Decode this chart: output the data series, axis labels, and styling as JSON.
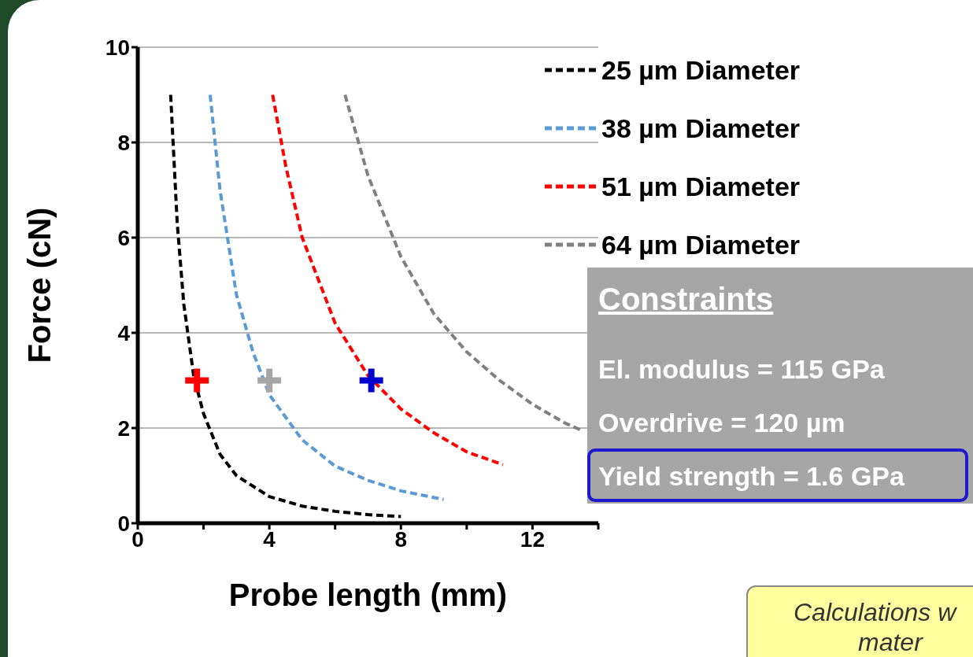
{
  "chart_data": {
    "type": "line",
    "xlabel": "Probe length (mm)",
    "ylabel": "Force (cN)",
    "xlim": [
      0,
      14
    ],
    "xticks": [
      0,
      {
        "value": 2,
        "label": null
      },
      4,
      {
        "value": 6,
        "label": null
      },
      8,
      {
        "value": 10,
        "label": null
      },
      12,
      {
        "value": 14,
        "label": null
      }
    ],
    "ylim": [
      0,
      10
    ],
    "yticks": [
      0,
      2,
      4,
      6,
      8,
      10
    ],
    "grid": "y",
    "legend": "top right",
    "line_style": "dashed",
    "marker": "none",
    "series": [
      {
        "name": "25 µm Diameter",
        "color": "#000000",
        "x": [
          1,
          1.2,
          1.4,
          1.7,
          2,
          2.5,
          3,
          4,
          5,
          6,
          7,
          8
        ],
        "values": [
          9,
          6.3,
          4.6,
          3.1,
          2.3,
          1.45,
          1,
          0.56,
          0.36,
          0.25,
          0.18,
          0.14
        ]
      },
      {
        "name": "38 µm Diameter",
        "color": "#5b9bd5",
        "x": [
          2.2,
          2.5,
          3,
          3.5,
          4,
          5,
          6,
          7,
          8,
          9.3
        ],
        "values": [
          9,
          7,
          4.8,
          3.6,
          2.7,
          1.75,
          1.2,
          0.9,
          0.68,
          0.5
        ]
      },
      {
        "name": "51 µm Diameter",
        "color": "#ff0000",
        "x": [
          4.1,
          4.5,
          5,
          6,
          7,
          8,
          9,
          10,
          11.1
        ],
        "values": [
          9,
          7.5,
          6,
          4.2,
          3.1,
          2.4,
          1.9,
          1.5,
          1.23
        ]
      },
      {
        "name": "64 µm Diameter",
        "color": "#808080",
        "x": [
          6.3,
          7,
          8,
          9,
          10,
          11,
          12,
          13,
          13.5
        ],
        "values": [
          9,
          7.3,
          5.6,
          4.4,
          3.6,
          3,
          2.5,
          2.1,
          1.95
        ]
      },
      {
        "type": "scatter",
        "marker": "cross",
        "color": "#ff0000",
        "x": [
          1.8
        ],
        "values": [
          3
        ]
      },
      {
        "type": "scatter",
        "marker": "cross",
        "color": "#a6a6a6",
        "x": [
          4
        ],
        "values": [
          3
        ]
      },
      {
        "type": "scatter",
        "marker": "cross",
        "color": "#0000cc",
        "x": [
          7.1
        ],
        "values": [
          3
        ]
      }
    ],
    "annotations": [
      "Constraints",
      "El. modulus = 115 GPa",
      "Overdrive = 120 µm",
      "Yield strength = 1.6 GPa",
      "Calculations w",
      "mater"
    ]
  }
}
